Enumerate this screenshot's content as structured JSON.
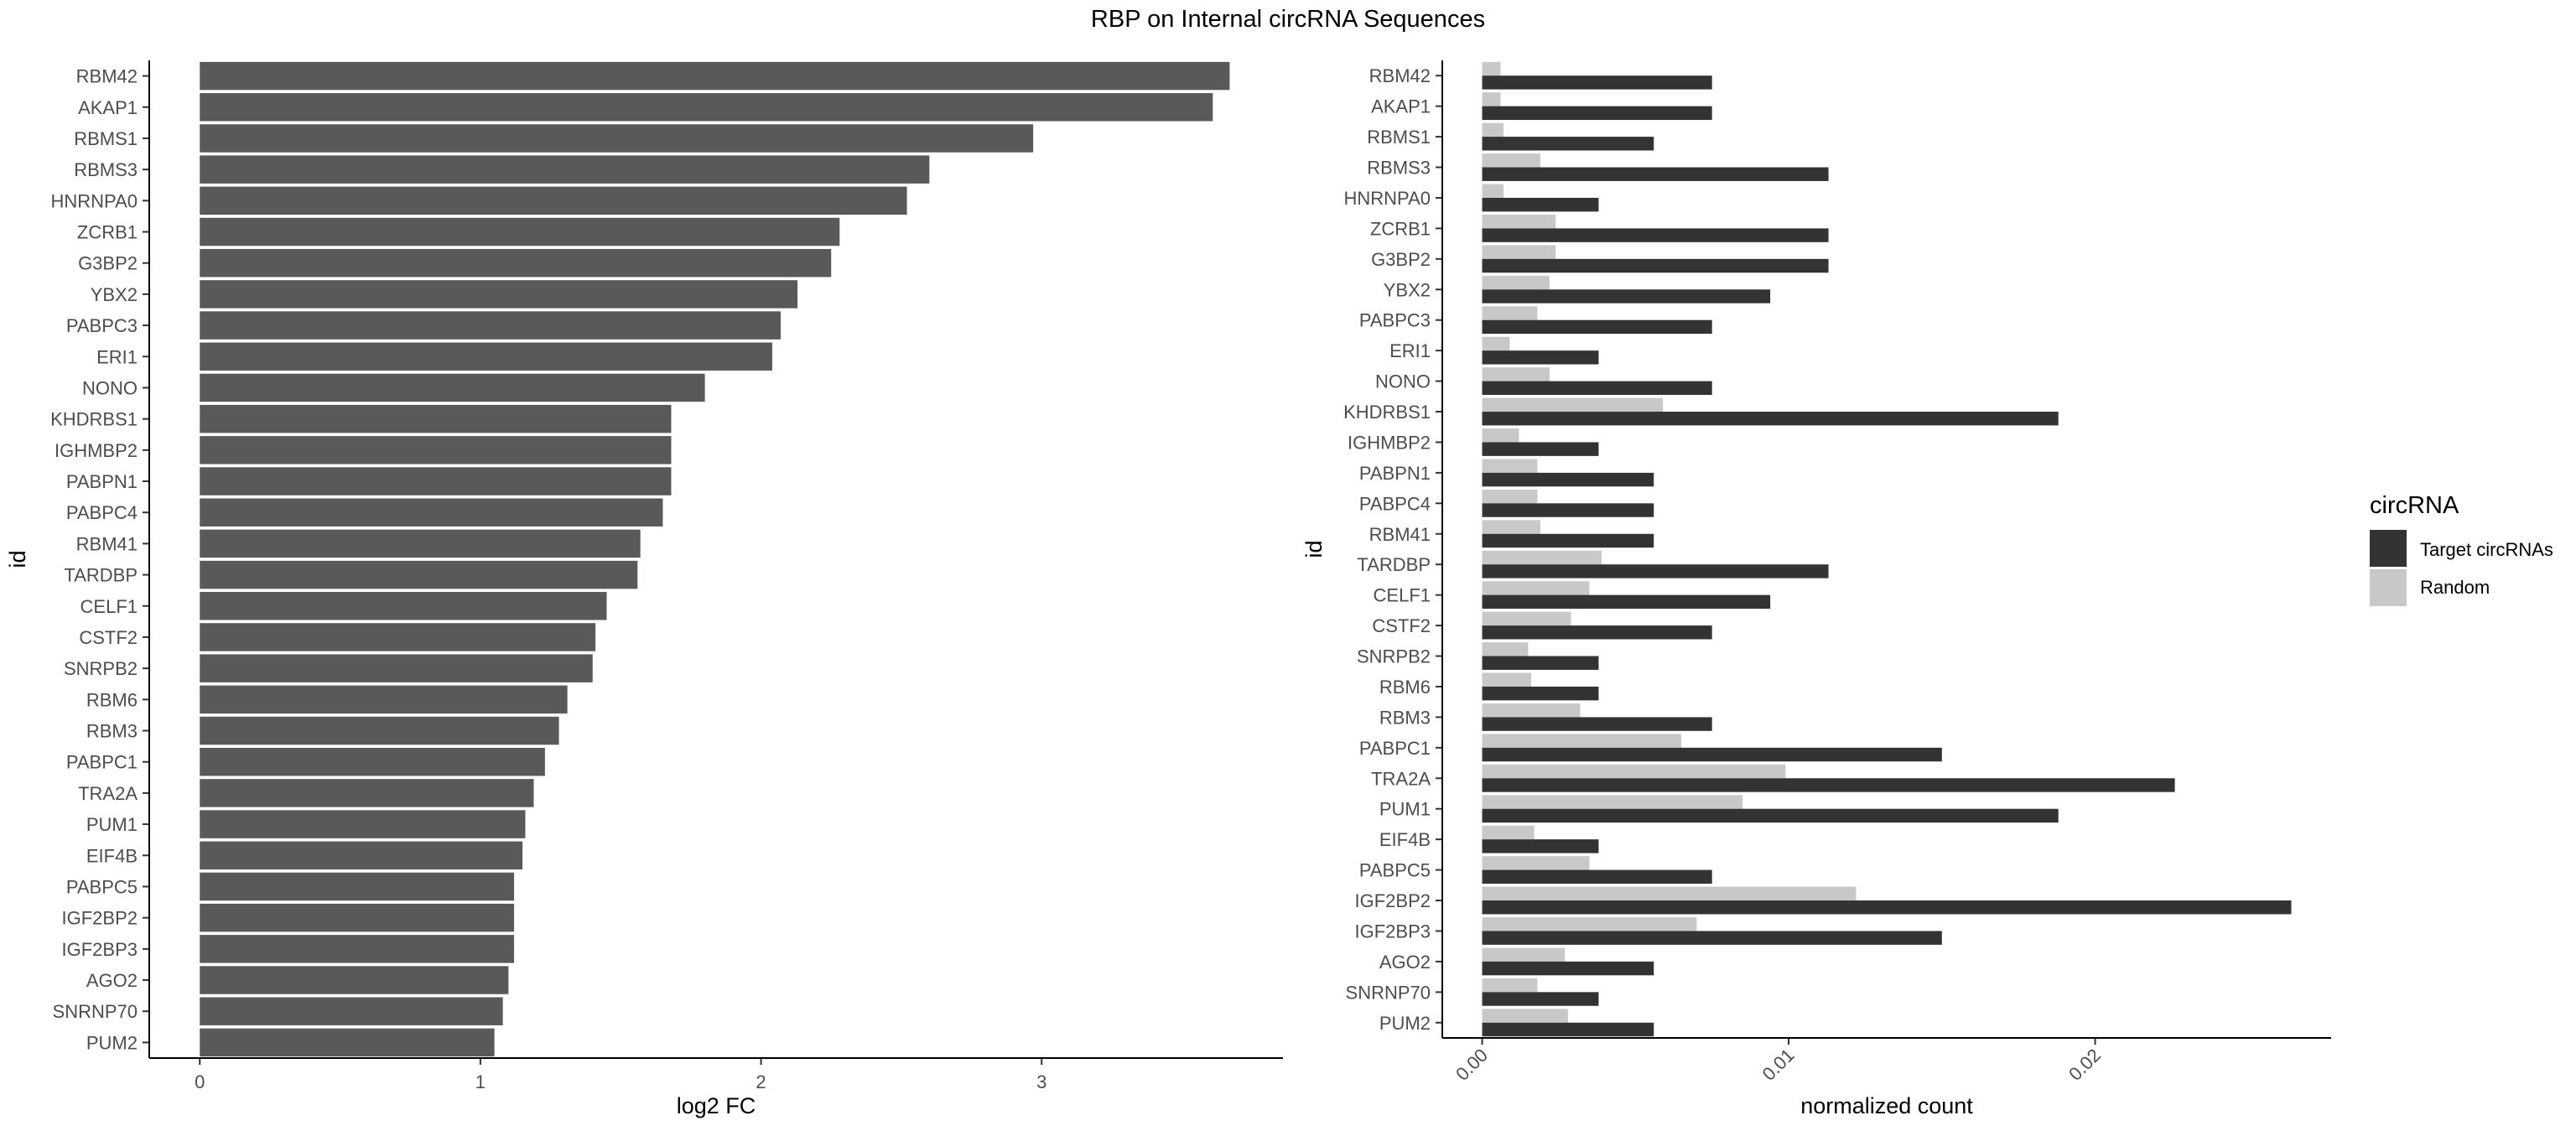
{
  "figure": {
    "title": "RBP on Internal circRNA Sequences"
  },
  "chart_data": [
    {
      "type": "bar",
      "orientation": "horizontal",
      "xlabel": "log2 FC",
      "ylabel": "id",
      "xlim": [
        -0.18,
        3.86
      ],
      "xticks": [
        0,
        1,
        2,
        3
      ],
      "grid": false,
      "bar_color": "#595959",
      "categories": [
        "RBM42",
        "AKAP1",
        "RBMS1",
        "RBMS3",
        "HNRNPA0",
        "ZCRB1",
        "G3BP2",
        "YBX2",
        "PABPC3",
        "ERI1",
        "NONO",
        "KHDRBS1",
        "IGHMBP2",
        "PABPN1",
        "PABPC4",
        "RBM41",
        "TARDBP",
        "CELF1",
        "CSTF2",
        "SNRPB2",
        "RBM6",
        "RBM3",
        "PABPC1",
        "TRA2A",
        "PUM1",
        "EIF4B",
        "PABPC5",
        "IGF2BP2",
        "IGF2BP3",
        "AGO2",
        "SNRNP70",
        "PUM2"
      ],
      "values": [
        3.67,
        3.61,
        2.97,
        2.6,
        2.52,
        2.28,
        2.25,
        2.13,
        2.07,
        2.04,
        1.8,
        1.68,
        1.68,
        1.68,
        1.65,
        1.57,
        1.56,
        1.45,
        1.41,
        1.4,
        1.31,
        1.28,
        1.23,
        1.19,
        1.16,
        1.15,
        1.12,
        1.12,
        1.12,
        1.1,
        1.08,
        1.05
      ]
    },
    {
      "type": "bar",
      "orientation": "horizontal",
      "grouped": true,
      "xlabel": "normalized count",
      "ylabel": "id",
      "xlim": [
        -0.0013,
        0.0277
      ],
      "xticks": [
        0.0,
        0.01,
        0.02
      ],
      "xtick_labels": [
        "0.00",
        "0.01",
        "0.02"
      ],
      "grid": false,
      "legend": {
        "title": "circRNA",
        "position": "right",
        "entries": [
          "Target circRNAs",
          "Random"
        ]
      },
      "categories": [
        "RBM42",
        "AKAP1",
        "RBMS1",
        "RBMS3",
        "HNRNPA0",
        "ZCRB1",
        "G3BP2",
        "YBX2",
        "PABPC3",
        "ERI1",
        "NONO",
        "KHDRBS1",
        "IGHMBP2",
        "PABPN1",
        "PABPC4",
        "RBM41",
        "TARDBP",
        "CELF1",
        "CSTF2",
        "SNRPB2",
        "RBM6",
        "RBM3",
        "PABPC1",
        "TRA2A",
        "PUM1",
        "EIF4B",
        "PABPC5",
        "IGF2BP2",
        "IGF2BP3",
        "AGO2",
        "SNRNP70",
        "PUM2"
      ],
      "series": [
        {
          "name": "Target circRNAs",
          "color": "#333333",
          "values": [
            0.0075,
            0.0075,
            0.0056,
            0.0113,
            0.0038,
            0.0113,
            0.0113,
            0.0094,
            0.0075,
            0.0038,
            0.0075,
            0.0188,
            0.0038,
            0.0056,
            0.0056,
            0.0056,
            0.0113,
            0.0094,
            0.0075,
            0.0038,
            0.0038,
            0.0075,
            0.015,
            0.0226,
            0.0188,
            0.0038,
            0.0075,
            0.0264,
            0.015,
            0.0056,
            0.0038,
            0.0056
          ]
        },
        {
          "name": "Random",
          "color": "#c8c8c8",
          "values": [
            0.0006,
            0.0006,
            0.0007,
            0.0019,
            0.0007,
            0.0024,
            0.0024,
            0.0022,
            0.0018,
            0.0009,
            0.0022,
            0.0059,
            0.0012,
            0.0018,
            0.0018,
            0.0019,
            0.0039,
            0.0035,
            0.0029,
            0.0015,
            0.0016,
            0.0032,
            0.0065,
            0.0099,
            0.0085,
            0.0017,
            0.0035,
            0.0122,
            0.007,
            0.0027,
            0.0018,
            0.0028
          ]
        }
      ]
    }
  ]
}
